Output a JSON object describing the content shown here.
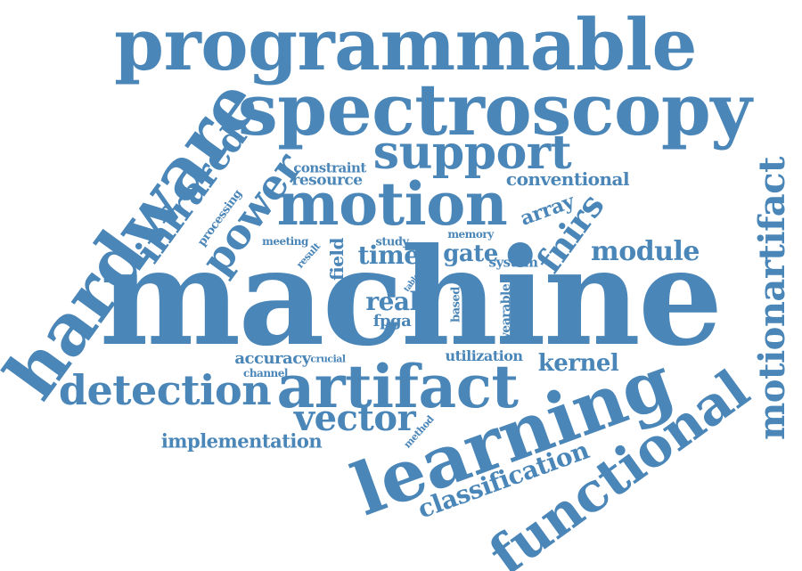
{
  "color": "#4a86b8",
  "words": [
    "programmable",
    "spectroscopy",
    "hardware",
    "support",
    "infrared",
    "power",
    "constraint",
    "resource",
    "conventional",
    "motion",
    "processing",
    "array",
    "meeting",
    "result",
    "field",
    "study",
    "memory",
    "fnirs",
    "time",
    "gate",
    "system",
    "module",
    "motionartifact",
    "machine",
    "table",
    "real",
    "fpga",
    "based",
    "wearable",
    "accuracy",
    "crucial",
    "channel",
    "utilization",
    "kernel",
    "detection",
    "artifact",
    "vector",
    "method",
    "learning",
    "implementation",
    "functional",
    "classification"
  ]
}
